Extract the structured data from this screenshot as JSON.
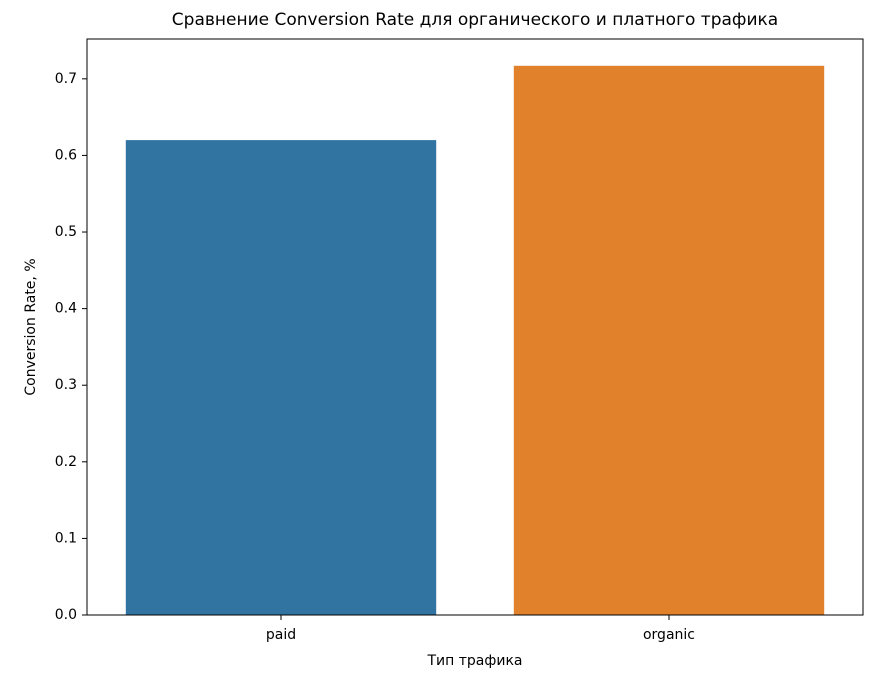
{
  "chart_data": {
    "type": "bar",
    "title": "Сравнение Conversion Rate для органического и платного трафика",
    "x_label": "Тип трафика",
    "y_label": "Conversion Rate, %",
    "categories": [
      "paid",
      "organic"
    ],
    "values": [
      0.62,
      0.717
    ],
    "colors": [
      "#3274a1",
      "#e1812c"
    ],
    "ylim": [
      0,
      0.752
    ],
    "yticks": [
      {
        "value": 0,
        "label": "0.0"
      },
      0.1,
      0.2,
      0.3,
      0.4,
      0.5,
      0.6,
      0.7
    ],
    "grid": false
  }
}
